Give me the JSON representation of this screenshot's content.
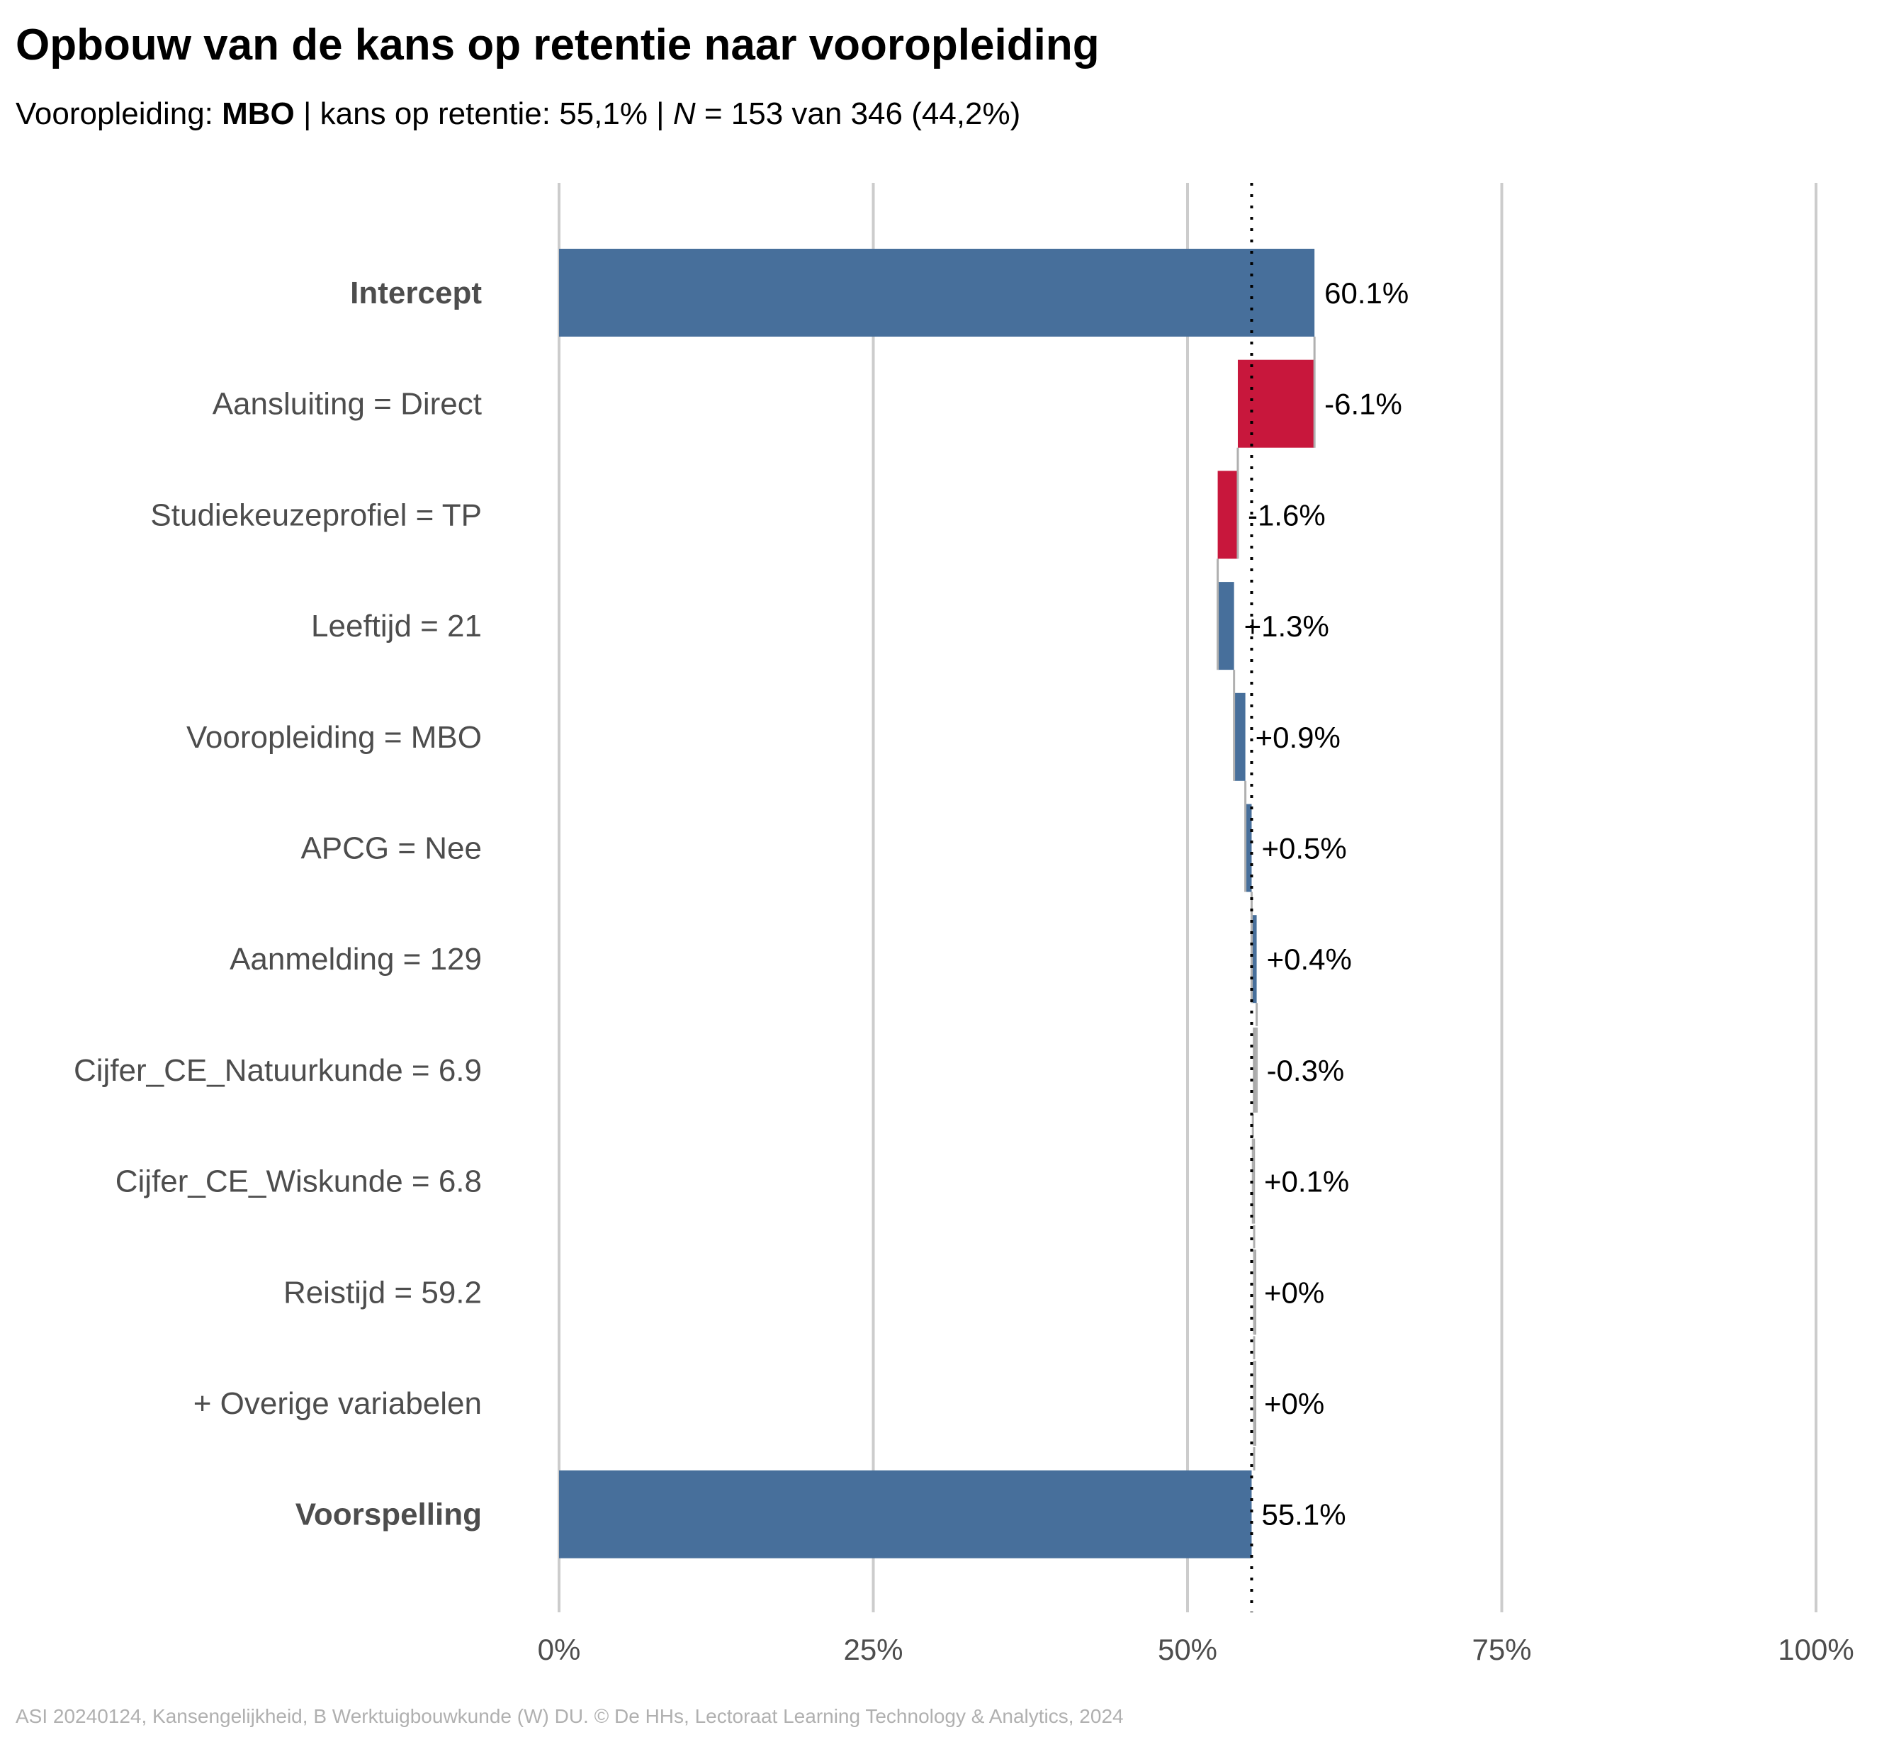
{
  "title": "Opbouw van de kans op retentie naar vooropleiding",
  "subtitle": {
    "prefix": "Vooropleiding: ",
    "group": "MBO",
    "middle": " | kans op retentie: 55,1% | ",
    "n_symbol": "N",
    "suffix": " = 153 van 346 (44,2%)"
  },
  "caption": "ASI 20240124, Kansengelijkheid, B Werktuigbouwkunde (W) DU. © De HHs, Lectoraat Learning Technology & Analytics, 2024",
  "colors": {
    "positive": "#476f9b",
    "negative": "#c8173c",
    "total": "#476f9b",
    "small": "#a9a9a9",
    "connector": "#b0b0b0",
    "grid": "#cccccc",
    "label_text": "#4d4d4d"
  },
  "chart_data": {
    "type": "waterfall",
    "orientation": "horizontal",
    "x_range": [
      0,
      100
    ],
    "x_unit": "%",
    "x_ticks": [
      {
        "value": 0,
        "label": "0%"
      },
      {
        "value": 25,
        "label": "25%"
      },
      {
        "value": 50,
        "label": "50%"
      },
      {
        "value": 75,
        "label": "75%"
      },
      {
        "value": 100,
        "label": "100%"
      }
    ],
    "reference_line": 55.1,
    "grid": true,
    "bars": [
      {
        "label": "Intercept",
        "value": 60.1,
        "start": 0,
        "end": 60.1,
        "text": "60.1%",
        "kind": "total",
        "bold": true
      },
      {
        "label": "Aansluiting = Direct",
        "value": -6.1,
        "start": 60.1,
        "end": 54.0,
        "text": "-6.1%",
        "kind": "negative",
        "bold": false
      },
      {
        "label": "Studiekeuzeprofiel = TP",
        "value": -1.6,
        "start": 54.0,
        "end": 52.4,
        "text": "-1.6%",
        "kind": "negative",
        "bold": false
      },
      {
        "label": "Leeftijd = 21",
        "value": 1.3,
        "start": 52.4,
        "end": 53.7,
        "text": "+1.3%",
        "kind": "positive",
        "bold": false
      },
      {
        "label": "Vooropleiding = MBO",
        "value": 0.9,
        "start": 53.7,
        "end": 54.6,
        "text": "+0.9%",
        "kind": "positive",
        "bold": false
      },
      {
        "label": "APCG = Nee",
        "value": 0.5,
        "start": 54.6,
        "end": 55.1,
        "text": "+0.5%",
        "kind": "positive",
        "bold": false
      },
      {
        "label": "Aanmelding = 129",
        "value": 0.4,
        "start": 55.1,
        "end": 55.5,
        "text": "+0.4%",
        "kind": "positive",
        "bold": false
      },
      {
        "label": "Cijfer_CE_Natuurkunde = 6.9",
        "value": -0.3,
        "start": 55.5,
        "end": 55.2,
        "text": "-0.3%",
        "kind": "small",
        "bold": false
      },
      {
        "label": "Cijfer_CE_Wiskunde = 6.8",
        "value": 0.1,
        "start": 55.2,
        "end": 55.3,
        "text": "+0.1%",
        "kind": "small",
        "bold": false
      },
      {
        "label": "Reistijd = 59.2",
        "value": 0,
        "start": 55.3,
        "end": 55.3,
        "text": "+0%",
        "kind": "small",
        "bold": false
      },
      {
        "label": "+ Overige variabelen",
        "value": 0,
        "start": 55.3,
        "end": 55.3,
        "text": "+0%",
        "kind": "small",
        "bold": false
      },
      {
        "label": "Voorspelling",
        "value": 55.1,
        "start": 0,
        "end": 55.1,
        "text": "55.1%",
        "kind": "total",
        "bold": true
      }
    ]
  }
}
